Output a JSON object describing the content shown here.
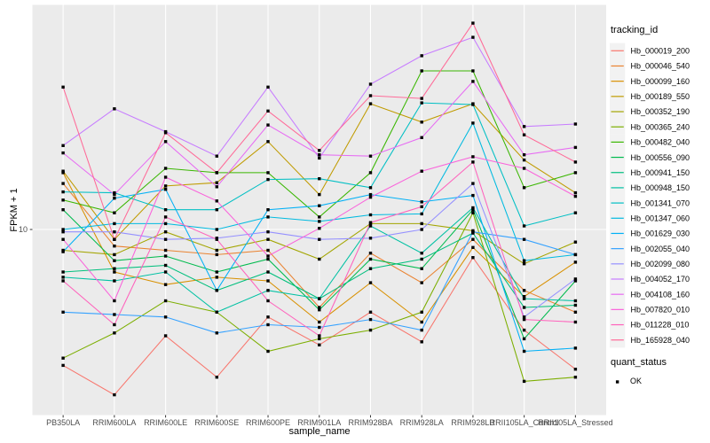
{
  "chart_data": {
    "type": "line",
    "xlabel": "sample_name",
    "ylabel": "FPKM + 1",
    "y_scale": "log10",
    "y_ticks": [
      {
        "value": 10,
        "label": "10"
      }
    ],
    "categories": [
      "PB350LA",
      "RRIM600LA",
      "RRIM600LE",
      "RRIM600SE",
      "RRIM600PE",
      "RRIM901LA",
      "RRIM928BA",
      "RRIM928LA",
      "RRIM928LB",
      "RRII105LA_Control",
      "RRII105LA_Stressed"
    ],
    "series": [
      {
        "name": "Hb_000019_200",
        "color": "#F8766D",
        "values": [
          3.2,
          2.5,
          4.1,
          2.9,
          4.8,
          3.8,
          5.0,
          3.9,
          7.9,
          4.3,
          3.1
        ]
      },
      {
        "name": "Hb_000046_540",
        "color": "#EA8331",
        "values": [
          14.7,
          8.7,
          8.4,
          8.1,
          8.4,
          5.2,
          8.2,
          6.4,
          9.2,
          6.0,
          5.0
        ]
      },
      {
        "name": "Hb_000099_160",
        "color": "#D89000",
        "values": [
          16.1,
          7.0,
          6.3,
          6.7,
          6.5,
          4.6,
          6.4,
          4.6,
          8.6,
          5.7,
          7.6
        ]
      },
      {
        "name": "Hb_000189_550",
        "color": "#C09B00",
        "values": [
          16.3,
          9.2,
          14.4,
          14.8,
          20.9,
          13.4,
          28.7,
          24.6,
          28.7,
          17.9,
          13.6
        ]
      },
      {
        "name": "Hb_000352_190",
        "color": "#A3A500",
        "values": [
          8.4,
          8.1,
          9.8,
          8.4,
          9.2,
          7.8,
          10.5,
          10.5,
          9.9,
          7.5,
          9.0
        ]
      },
      {
        "name": "Hb_000365_240",
        "color": "#7CAE00",
        "values": [
          3.4,
          4.2,
          5.5,
          5.0,
          3.6,
          4.0,
          4.3,
          5.0,
          11.5,
          2.8,
          2.9
        ]
      },
      {
        "name": "Hb_000482_040",
        "color": "#39B600",
        "values": [
          12.8,
          11.5,
          16.7,
          16.1,
          16.1,
          11.1,
          16.1,
          37.8,
          37.8,
          14.2,
          16.1
        ]
      },
      {
        "name": "Hb_000556_090",
        "color": "#00BB4E",
        "values": [
          11.8,
          7.7,
          8.0,
          7.0,
          7.8,
          5.1,
          7.8,
          7.2,
          11.8,
          4.0,
          6.5
        ]
      },
      {
        "name": "Hb_000941_150",
        "color": "#00BF7D",
        "values": [
          7.0,
          7.2,
          7.4,
          6.0,
          7.0,
          5.6,
          7.2,
          7.8,
          9.7,
          5.2,
          5.3
        ]
      },
      {
        "name": "Hb_000948_150",
        "color": "#00C1A3",
        "values": [
          6.7,
          6.5,
          7.0,
          5.0,
          6.0,
          5.6,
          10.3,
          8.2,
          12.0,
          5.6,
          5.5
        ]
      },
      {
        "name": "Hb_001341_070",
        "color": "#00BFC4",
        "values": [
          13.7,
          13.6,
          11.8,
          11.8,
          15.2,
          15.3,
          14.2,
          28.9,
          28.5,
          10.3,
          11.5
        ]
      },
      {
        "name": "Hb_001347_060",
        "color": "#00BAE0",
        "values": [
          10.0,
          10.5,
          10.5,
          10.0,
          11.1,
          10.7,
          11.3,
          11.4,
          24.4,
          7.7,
          8.1
        ]
      },
      {
        "name": "Hb_001629_030",
        "color": "#00B0F6",
        "values": [
          8.3,
          13.0,
          14.0,
          6.0,
          11.8,
          12.2,
          13.4,
          12.6,
          13.3,
          3.6,
          3.7
        ]
      },
      {
        "name": "Hb_002055_040",
        "color": "#35A2FF",
        "values": [
          5.0,
          4.9,
          4.8,
          4.2,
          4.5,
          4.4,
          4.7,
          4.3,
          9.8,
          9.2,
          8.1
        ]
      },
      {
        "name": "Hb_002099_080",
        "color": "#9590FF",
        "values": [
          9.8,
          9.8,
          9.2,
          9.3,
          9.8,
          9.2,
          9.3,
          10.0,
          14.7,
          4.8,
          6.6
        ]
      },
      {
        "name": "Hb_004052_170",
        "color": "#C77CFF",
        "values": [
          20.2,
          27.5,
          22.7,
          18.5,
          33.0,
          18.2,
          33.8,
          42.9,
          50.1,
          23.7,
          24.2
        ]
      },
      {
        "name": "Hb_004108_160",
        "color": "#E76BF3",
        "values": [
          19.0,
          13.4,
          20.9,
          14.3,
          24.0,
          18.7,
          18.5,
          21.6,
          34.6,
          18.7,
          19.9
        ]
      },
      {
        "name": "Hb_007820_010",
        "color": "#FA62DB",
        "values": [
          9.2,
          5.5,
          15.5,
          12.7,
          8.0,
          10.1,
          13.1,
          16.3,
          18.4,
          16.7,
          13.2
        ]
      },
      {
        "name": "Hb_011228_010",
        "color": "#FF62BC",
        "values": [
          6.5,
          4.5,
          11.1,
          9.2,
          5.5,
          4.1,
          10.6,
          12.1,
          17.6,
          4.7,
          4.6
        ]
      },
      {
        "name": "Hb_165928_040",
        "color": "#FF6A98",
        "values": [
          33.0,
          9.2,
          22.5,
          16.1,
          27.0,
          19.4,
          30.7,
          30.0,
          56.4,
          22.1,
          17.6
        ]
      }
    ],
    "legend": {
      "tracking_title": "tracking_id",
      "quant_title": "quant_status",
      "quant_items": [
        {
          "label": "OK",
          "shape": "filled-square",
          "color": "#000000"
        }
      ],
      "position": "right",
      "key_bg": "#F2F2F2"
    },
    "grid": {
      "h_major": [
        10
      ],
      "v_major": "one-per-category",
      "grid_color": "#FFFFFF"
    },
    "panel_bg": "#EBEBEB",
    "tick_color": "#333333",
    "tick_label_color": "#4D4D4D",
    "point": {
      "shape": "square",
      "color": "#000000",
      "size": 3.4
    }
  }
}
